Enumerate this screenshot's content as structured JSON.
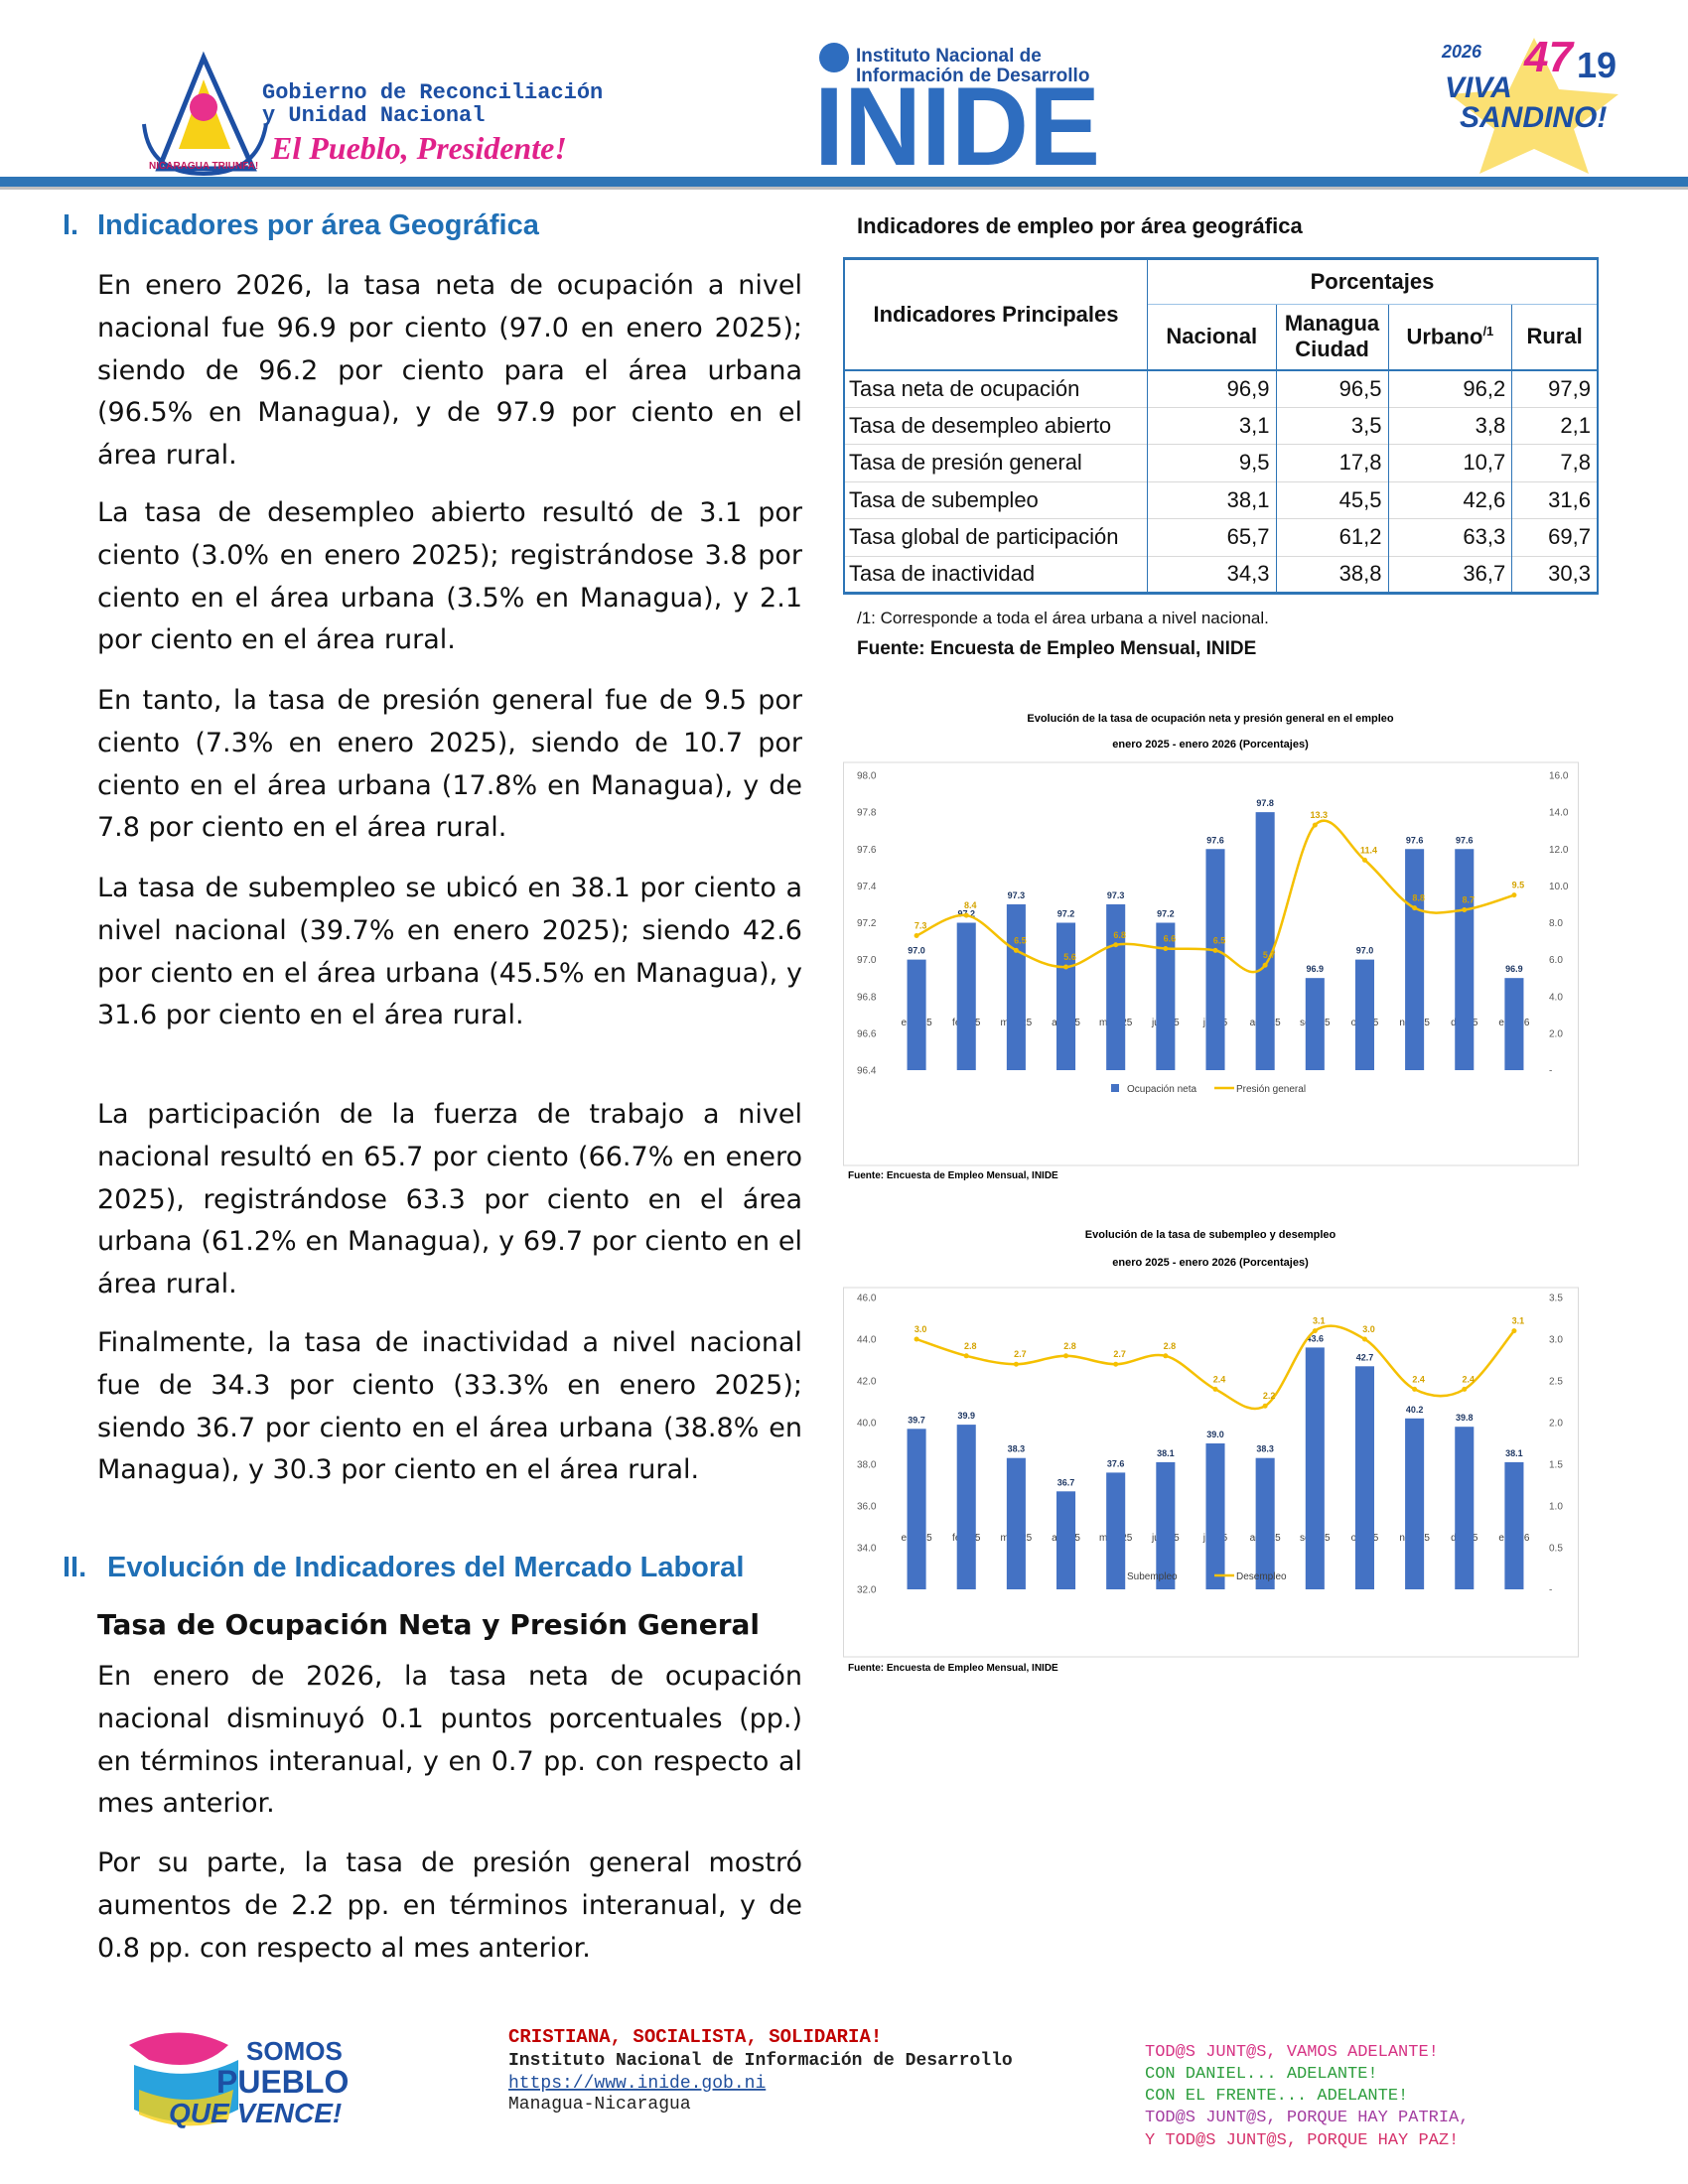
{
  "header": {
    "gov_line1": "Gobierno de Reconciliación",
    "gov_line2": "y Unidad Nacional",
    "gov_slogan": "El Pueblo, Presidente!",
    "gov_ring": "NICARAGUA TRIUNFA!",
    "inide_line1": "Instituto Nacional de",
    "inide_line2": "Información de Desarrollo",
    "inide": "INIDE",
    "anniv_year": "2026",
    "anniv_number": "47",
    "anniv_number2": "19",
    "anniv_viva": "VIVA",
    "anniv_sandino": "SANDINO!"
  },
  "sections": [
    {
      "number": "I.",
      "heading": "Indicadores por área Geográfica",
      "paragraphs": [
        "En enero 2026, la tasa neta de ocupación a nivel nacional fue 96.9 por ciento (97.0 en enero 2025); siendo de 96.2 por ciento para el área urbana (96.5% en Managua), y de 97.9 por ciento en el área rural.",
        "La tasa de desempleo abierto resultó de 3.1 por ciento (3.0% en enero 2025); registrándose 3.8 por ciento en el área urbana (3.5% en Managua), y 2.1 por ciento en el área rural.",
        "En tanto, la tasa de presión general fue de 9.5 por ciento (7.3% en enero 2025), siendo de 10.7 por ciento en el área urbana (17.8% en Managua), y de 7.8 por ciento en el área rural.",
        "La tasa de subempleo se ubicó en 38.1 por ciento a nivel nacional (39.7% en enero 2025); siendo 42.6 por ciento en el área urbana (45.5% en Managua), y 31.6 por ciento en el área rural.",
        "La participación de la fuerza de trabajo a nivel nacional resultó en 65.7 por ciento (66.7% en enero 2025), registrándose 63.3 por ciento en el área urbana (61.2% en Managua), y 69.7 por ciento en el área rural.",
        "Finalmente, la tasa de inactividad a nivel nacional fue de 34.3 por ciento (33.3% en enero 2025); siendo 36.7 por ciento en el área urbana (38.8% en Managua), y 30.3 por ciento en el área rural."
      ]
    },
    {
      "number": "II.",
      "heading": "Evolución de Indicadores del Mercado Laboral",
      "subheading": "Tasa de Ocupación Neta y Presión General",
      "paragraphs": [
        "En enero de 2026, la tasa neta de ocupación nacional disminuyó 0.1 puntos porcentuales (pp.) en términos interanual, y en 0.7 pp. con respecto al mes anterior.",
        "Por su parte, la tasa de presión general mostró aumentos de 2.2 pp. en términos interanual, y de 0.8 pp. con respecto al mes anterior."
      ]
    }
  ],
  "table": {
    "caption": "Indicadores de empleo por área geográfica",
    "row_header": "Indicadores Principales",
    "group_header": "Porcentajes",
    "columns": [
      "Nacional",
      "Managua Ciudad",
      "Urbano",
      "Rural"
    ],
    "urbano_note": "/1",
    "rows": [
      [
        "Tasa neta de ocupación",
        "96,9",
        "96,5",
        "96,2",
        "97,9"
      ],
      [
        "Tasa de desempleo abierto",
        "3,1",
        "3,5",
        "3,8",
        "2,1"
      ],
      [
        "Tasa de presión general",
        "9,5",
        "17,8",
        "10,7",
        "7,8"
      ],
      [
        "Tasa de subempleo",
        "38,1",
        "45,5",
        "42,6",
        "31,6"
      ],
      [
        "Tasa global de participación",
        "65,7",
        "61,2",
        "63,3",
        "69,7"
      ],
      [
        "Tasa de inactividad",
        "34,3",
        "38,8",
        "36,7",
        "30,3"
      ]
    ],
    "footnote": "/1: Corresponde a toda el área urbana a nivel nacional.",
    "source": "Fuente: Encuesta de Empleo Mensual, INIDE"
  },
  "chart_data": [
    {
      "type": "combo",
      "title": "Evolución de la tasa de ocupación neta y presión general en el empleo",
      "subtitle": "enero 2025 - enero 2026  (Porcentajes)",
      "source": "Fuente: Encuesta de Empleo Mensual, INIDE",
      "categories": [
        "ene-25",
        "feb-25",
        "mar-25",
        "abr-25",
        "may-25",
        "jun-25",
        "jul-25",
        "ago-25",
        "sep-25",
        "oct-25",
        "nov-25",
        "dic-25",
        "ene-26"
      ],
      "series": [
        {
          "name": "Ocupación neta",
          "type": "bar",
          "color": "#4472c4",
          "values": [
            97.0,
            97.2,
            97.3,
            97.2,
            97.3,
            97.2,
            97.6,
            97.8,
            96.9,
            97.0,
            97.6,
            97.6,
            96.9
          ],
          "value_labels": [
            "97.0",
            "97.2",
            "97.3",
            "97.2",
            "97.3",
            "97.2",
            "97.6",
            "97.8",
            "96.9",
            "97.0",
            "97.6",
            "97.6",
            "96.9"
          ]
        },
        {
          "name": "Presión general",
          "type": "line",
          "axis": "y2",
          "color": "#f5c000",
          "values": [
            7.3,
            8.4,
            6.5,
            5.6,
            6.8,
            6.6,
            6.5,
            5.7,
            13.3,
            11.4,
            8.8,
            8.7,
            9.5
          ]
        }
      ],
      "ylim": [
        96.4,
        98.0
      ],
      "yticks": [
        96.4,
        96.6,
        96.8,
        {
          "value": 97,
          "label": "97.0"
        },
        97.2,
        97.4,
        97.6,
        97.8,
        {
          "value": 98,
          "label": "98.0"
        }
      ],
      "y2lim": [
        0,
        16
      ],
      "y2ticks": [
        {
          "value": 0,
          "label": "-"
        },
        {
          "value": 2,
          "label": "2.0"
        },
        {
          "value": 4,
          "label": "4.0"
        },
        {
          "value": 6,
          "label": "6.0"
        },
        {
          "value": 8,
          "label": "8.0"
        },
        {
          "value": 10,
          "label": "10.0"
        },
        {
          "value": 12,
          "label": "12.0"
        },
        {
          "value": 14,
          "label": "14.0"
        },
        {
          "value": 16,
          "label": "16.0"
        }
      ],
      "grid": false,
      "legend": "bottom"
    },
    {
      "type": "combo",
      "title": "Evolución de la tasa de subempleo y desempleo",
      "subtitle": "enero 2025 - enero 2026  (Porcentajes)",
      "source": "Fuente: Encuesta de Empleo Mensual, INIDE",
      "categories": [
        "ene-25",
        "feb-25",
        "mar-25",
        "abr-25",
        "may-25",
        "jun-25",
        "jul-25",
        "ago-25",
        "sep-25",
        "oct-25",
        "nov-25",
        "dic-25",
        "ene-26"
      ],
      "series": [
        {
          "name": "Subempleo",
          "type": "bar",
          "color": "#4472c4",
          "values": [
            39.7,
            39.9,
            38.3,
            36.7,
            37.6,
            38.1,
            39.0,
            38.3,
            43.6,
            42.7,
            40.2,
            39.8,
            38.1
          ],
          "value_labels": [
            "39.7",
            "39.9",
            "38.3",
            "36.7",
            "37.6",
            "38.1",
            "39.0",
            "38.3",
            "43.6",
            "42.7",
            "40.2",
            "39.8",
            "38.1"
          ]
        },
        {
          "name": "Desempleo",
          "type": "line",
          "axis": "y2",
          "color": "#f5c000",
          "values": [
            3.0,
            2.8,
            2.7,
            2.8,
            2.7,
            2.8,
            2.4,
            2.2,
            3.1,
            3.0,
            2.4,
            2.4,
            3.1
          ],
          "value_labels": [
            "3.0",
            "2.8",
            "2.7",
            "2.8",
            "2.7",
            "2.8",
            "2.4",
            "2.2",
            "3.1",
            "3.0",
            "2.4",
            "2.4",
            "3.1"
          ]
        }
      ],
      "ylim": [
        32,
        46
      ],
      "yticks": [
        {
          "value": 32,
          "label": "32.0"
        },
        {
          "value": 34,
          "label": "34.0"
        },
        {
          "value": 36,
          "label": "36.0"
        },
        {
          "value": 38,
          "label": "38.0"
        },
        {
          "value": 40,
          "label": "40.0"
        },
        {
          "value": 42,
          "label": "42.0"
        },
        {
          "value": 44,
          "label": "44.0"
        },
        {
          "value": 46,
          "label": "46.0"
        }
      ],
      "y2lim": [
        0,
        3.5
      ],
      "y2ticks": [
        {
          "value": 0,
          "label": "-"
        },
        0.5,
        {
          "value": 1,
          "label": "1.0"
        },
        1.5,
        {
          "value": 2,
          "label": "2.0"
        },
        2.5,
        {
          "value": 3,
          "label": "3.0"
        },
        3.5
      ],
      "grid": false,
      "legend": "bottom"
    }
  ],
  "footer": {
    "logo_line1": "SOMOS",
    "logo_line2": "PUEBLO",
    "logo_line3": "QUE VENCE!",
    "motto": "CRISTIANA, SOCIALISTA, SOLIDARIA!",
    "institute": "Instituto Nacional de Información de Desarrollo",
    "url": "https://www.inide.gob.ni",
    "city": "Managua-Nicaragua",
    "slogans": [
      "TOD@S JUNT@S, VAMOS ADELANTE!",
      "CON DANIEL... ADELANTE!",
      "CON EL FRENTE... ADELANTE!",
      "TOD@S JUNT@S, PORQUE HAY PATRIA,",
      "Y TOD@S JUNT@S, PORQUE HAY PAZ!"
    ]
  }
}
